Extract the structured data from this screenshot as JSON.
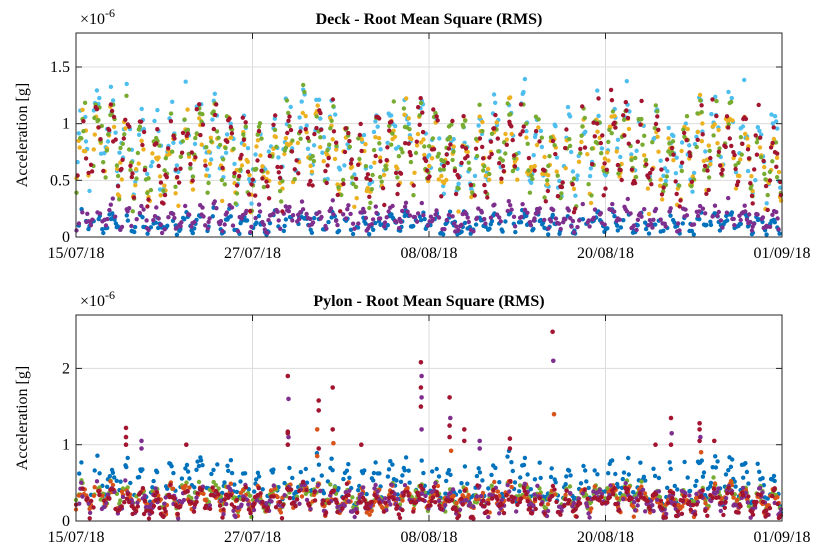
{
  "chart_data": [
    {
      "type": "scatter",
      "title": "Deck - Root Mean Square (RMS)",
      "ylabel": "Acceleration [g]",
      "xlabel": "",
      "exponent_base": "×10",
      "exponent_power": "-6",
      "xlim": [
        "2018-07-15",
        "2018-09-01"
      ],
      "ylim": [
        0,
        1.8
      ],
      "xticks": [
        "2018-07-15",
        "2018-07-27",
        "2018-08-08",
        "2018-08-20",
        "2018-09-01"
      ],
      "xtick_labels": [
        "15/07/18",
        "27/07/18",
        "08/08/18",
        "20/08/18",
        "01/09/18"
      ],
      "yticks": [
        0,
        0.5,
        1,
        1.5
      ],
      "ytick_labels": [
        "0",
        "0.5",
        "1",
        "1.5"
      ],
      "grid": true,
      "series": [
        {
          "color": "#0072BD",
          "profile": {
            "base": 0.12,
            "amp": 0.07,
            "noise": 0.04,
            "min": 0.02,
            "max": 0.3
          }
        },
        {
          "color": "#7E2F8E",
          "profile": {
            "base": 0.17,
            "amp": 0.08,
            "noise": 0.05,
            "min": 0.03,
            "max": 0.35
          }
        },
        {
          "color": "#4DBEEE",
          "profile": {
            "base": 0.82,
            "amp": 0.3,
            "noise": 0.16,
            "min": 0.25,
            "max": 1.62
          }
        },
        {
          "color": "#EDB120",
          "profile": {
            "base": 0.72,
            "amp": 0.25,
            "noise": 0.15,
            "min": 0.2,
            "max": 1.4
          }
        },
        {
          "color": "#77AC30",
          "profile": {
            "base": 0.75,
            "amp": 0.28,
            "noise": 0.16,
            "min": 0.2,
            "max": 1.6
          }
        },
        {
          "color": "#A2142F",
          "profile": {
            "base": 0.73,
            "amp": 0.28,
            "noise": 0.16,
            "min": 0.2,
            "max": 1.58
          }
        }
      ]
    },
    {
      "type": "scatter",
      "title": "Pylon - Root Mean Square (RMS)",
      "ylabel": "Acceleration [g]",
      "xlabel": "",
      "exponent_base": "×10",
      "exponent_power": "-6",
      "xlim": [
        "2018-07-15",
        "2018-09-01"
      ],
      "ylim": [
        0,
        2.7
      ],
      "xticks": [
        "2018-07-15",
        "2018-07-27",
        "2018-08-08",
        "2018-08-20",
        "2018-09-01"
      ],
      "xtick_labels": [
        "15/07/18",
        "27/07/18",
        "08/08/18",
        "20/08/18",
        "01/09/18"
      ],
      "yticks": [
        0,
        1,
        2
      ],
      "ytick_labels": [
        "0",
        "1",
        "2"
      ],
      "grid": true,
      "series": [
        {
          "color": "#0072BD",
          "profile": {
            "base": 0.5,
            "amp": 0.22,
            "noise": 0.12,
            "min": 0.05,
            "max": 1.08
          }
        },
        {
          "color": "#77AC30",
          "profile": {
            "base": 0.32,
            "amp": 0.1,
            "noise": 0.08,
            "min": 0.05,
            "max": 0.65
          }
        },
        {
          "color": "#D95319",
          "profile": {
            "base": 0.28,
            "amp": 0.12,
            "noise": 0.09,
            "min": 0.05,
            "max": 0.8
          }
        },
        {
          "color": "#7E2F8E",
          "profile": {
            "base": 0.27,
            "amp": 0.12,
            "noise": 0.1,
            "min": 0.03,
            "max": 0.9
          }
        },
        {
          "color": "#A2142F",
          "profile": {
            "base": 0.25,
            "amp": 0.12,
            "noise": 0.1,
            "min": 0.03,
            "max": 0.9
          }
        }
      ],
      "peaks": [
        {
          "date": "2018-07-18",
          "color": "#A2142F",
          "values": [
            1.22,
            1.1,
            1.0
          ]
        },
        {
          "date": "2018-07-19",
          "color": "#7E2F8E",
          "values": [
            1.05,
            0.95
          ]
        },
        {
          "date": "2018-07-22",
          "color": "#A2142F",
          "values": [
            1.0
          ]
        },
        {
          "date": "2018-07-29",
          "color": "#A2142F",
          "values": [
            1.9,
            1.17,
            1.15,
            1.0
          ]
        },
        {
          "date": "2018-07-29",
          "color": "#7E2F8E",
          "values": [
            1.6,
            1.1
          ]
        },
        {
          "date": "2018-07-31",
          "color": "#A2142F",
          "values": [
            1.58,
            1.45,
            0.95
          ]
        },
        {
          "date": "2018-07-31",
          "color": "#D95319",
          "values": [
            1.2,
            0.85
          ]
        },
        {
          "date": "2018-08-01",
          "color": "#A2142F",
          "values": [
            1.75,
            1.2
          ]
        },
        {
          "date": "2018-08-01",
          "color": "#D95319",
          "values": [
            1.02
          ]
        },
        {
          "date": "2018-08-03",
          "color": "#A2142F",
          "values": [
            1.0
          ]
        },
        {
          "date": "2018-08-07",
          "color": "#A2142F",
          "values": [
            2.08,
            1.75,
            1.5
          ]
        },
        {
          "date": "2018-08-07",
          "color": "#7E2F8E",
          "values": [
            1.9,
            1.62,
            1.2
          ]
        },
        {
          "date": "2018-08-09",
          "color": "#A2142F",
          "values": [
            1.62,
            1.25,
            1.1
          ]
        },
        {
          "date": "2018-08-09",
          "color": "#7E2F8E",
          "values": [
            1.35
          ]
        },
        {
          "date": "2018-08-09",
          "color": "#D95319",
          "values": [
            0.92
          ]
        },
        {
          "date": "2018-08-10",
          "color": "#A2142F",
          "values": [
            1.2,
            1.05
          ]
        },
        {
          "date": "2018-08-11",
          "color": "#7E2F8E",
          "values": [
            1.05,
            0.95
          ]
        },
        {
          "date": "2018-08-13",
          "color": "#A2142F",
          "values": [
            1.08,
            0.95
          ]
        },
        {
          "date": "2018-08-16",
          "color": "#A2142F",
          "values": [
            2.48
          ]
        },
        {
          "date": "2018-08-16",
          "color": "#7E2F8E",
          "values": [
            2.1
          ]
        },
        {
          "date": "2018-08-16",
          "color": "#D95319",
          "values": [
            1.4
          ]
        },
        {
          "date": "2018-08-23",
          "color": "#A2142F",
          "values": [
            1.0
          ]
        },
        {
          "date": "2018-08-24",
          "color": "#A2142F",
          "values": [
            1.35,
            1.0
          ]
        },
        {
          "date": "2018-08-24",
          "color": "#7E2F8E",
          "values": [
            1.15
          ]
        },
        {
          "date": "2018-08-26",
          "color": "#A2142F",
          "values": [
            1.28,
            1.2,
            1.05
          ]
        },
        {
          "date": "2018-08-26",
          "color": "#7E2F8E",
          "values": [
            1.1
          ]
        },
        {
          "date": "2018-08-26",
          "color": "#D95319",
          "values": [
            0.9
          ]
        },
        {
          "date": "2018-08-27",
          "color": "#A2142F",
          "values": [
            1.05
          ]
        }
      ]
    }
  ]
}
